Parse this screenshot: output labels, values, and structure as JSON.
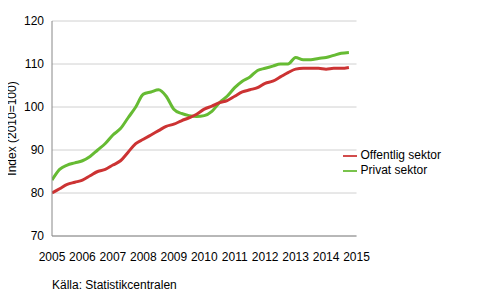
{
  "chart_data": {
    "type": "line",
    "y_label": "Index (2010=100)",
    "source": "Källa: Statistikcentralen",
    "x": [
      2005.0,
      2005.25,
      2005.5,
      2005.75,
      2006.0,
      2006.25,
      2006.5,
      2006.75,
      2007.0,
      2007.25,
      2007.5,
      2007.75,
      2008.0,
      2008.25,
      2008.5,
      2008.75,
      2009.0,
      2009.25,
      2009.5,
      2009.75,
      2010.0,
      2010.25,
      2010.5,
      2010.75,
      2011.0,
      2011.25,
      2011.5,
      2011.75,
      2012.0,
      2012.25,
      2012.5,
      2012.75,
      2013.0,
      2013.25,
      2013.5,
      2013.75,
      2014.0,
      2014.25,
      2014.5,
      2014.75
    ],
    "series": [
      {
        "name": "Privat sektor",
        "color": "#66bb33",
        "values": [
          83,
          85.5,
          86.5,
          87,
          87.5,
          88.5,
          90,
          91.5,
          93.5,
          95,
          97.5,
          100,
          103,
          103.5,
          104,
          102.5,
          99.5,
          98.5,
          98,
          97.8,
          98,
          99,
          101,
          102.5,
          104.5,
          106,
          107,
          108.5,
          109,
          109.5,
          110,
          110,
          111.5,
          111,
          111,
          111.3,
          111.5,
          112,
          112.5,
          112.7
        ]
      },
      {
        "name": "Offentlig sektor",
        "color": "#cc3333",
        "values": [
          80,
          81,
          82,
          82.5,
          83,
          84,
          85,
          85.5,
          86.5,
          87.5,
          89.5,
          91.5,
          92.5,
          93.5,
          94.5,
          95.5,
          96,
          96.8,
          97.5,
          98.3,
          99.5,
          100.2,
          101,
          101.5,
          102.5,
          103.5,
          104,
          104.5,
          105.5,
          106,
          107,
          108,
          108.8,
          109,
          109,
          109,
          108.8,
          109,
          109,
          109.2
        ]
      }
    ],
    "xlim": [
      2005,
      2015
    ],
    "xticks": [
      2005,
      2006,
      2007,
      2008,
      2009,
      2010,
      2011,
      2012,
      2013,
      2014,
      2015
    ],
    "ylim": [
      70,
      120
    ],
    "yticks": [
      70,
      80,
      90,
      100,
      110,
      120
    ],
    "grid": true,
    "legend": "right"
  }
}
